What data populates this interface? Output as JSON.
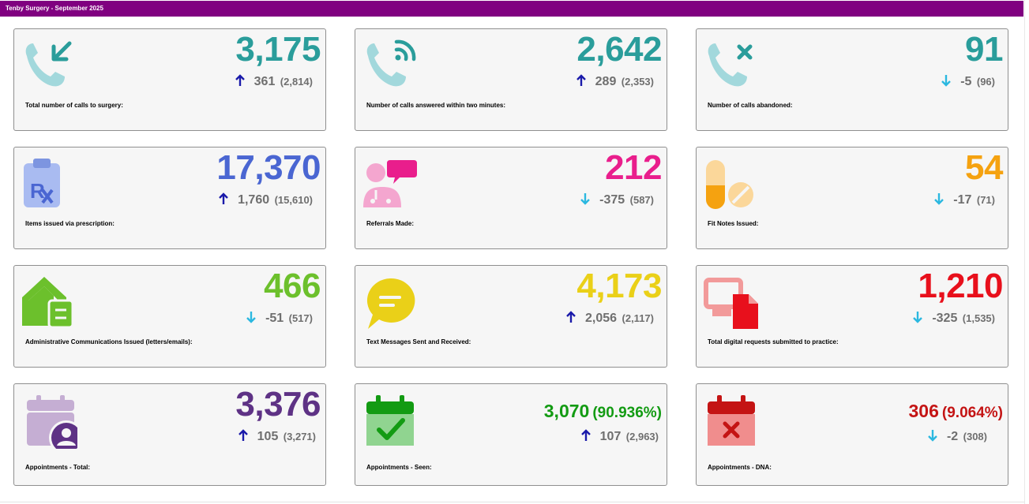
{
  "header": {
    "title": "Tenby Surgery - September 2025"
  },
  "cards": [
    {
      "label": "Total number of calls to surgery:",
      "value": "3,175",
      "percent": "",
      "change": "361",
      "previous": "(2,814)",
      "trend": "up",
      "color": "#2a9d9b",
      "icon": "incoming-call-icon"
    },
    {
      "label": "Number of calls answered within two minutes:",
      "value": "2,642",
      "percent": "",
      "change": "289",
      "previous": "(2,353)",
      "trend": "up",
      "color": "#2a9d9b",
      "icon": "phone-wireless-icon"
    },
    {
      "label": "Number of calls abandoned:",
      "value": "91",
      "percent": "",
      "change": "-5",
      "previous": "(96)",
      "trend": "down",
      "color": "#2a9d9b",
      "icon": "missed-call-icon"
    },
    {
      "label": "Items issued via prescription:",
      "value": "17,370",
      "percent": "",
      "change": "1,760",
      "previous": "(15,610)",
      "trend": "up",
      "color": "#4a66d2",
      "icon": "prescription-clipboard-icon"
    },
    {
      "label": "Referrals Made:",
      "value": "212",
      "percent": "",
      "change": "-375",
      "previous": "(587)",
      "trend": "down",
      "color": "#e91e8c",
      "icon": "doctor-speech-icon"
    },
    {
      "label": "Fit Notes Issued:",
      "value": "54",
      "percent": "",
      "change": "-17",
      "previous": "(71)",
      "trend": "down",
      "color": "#f5a210",
      "icon": "pills-icon"
    },
    {
      "label": "Administrative Communications Issued (letters/emails):",
      "value": "466",
      "percent": "",
      "change": "-51",
      "previous": "(517)",
      "trend": "down",
      "color": "#6cc02c",
      "icon": "house-document-icon"
    },
    {
      "label": "Text Messages Sent and Received:",
      "value": "4,173",
      "percent": "",
      "change": "2,056",
      "previous": "(2,117)",
      "trend": "up",
      "color": "#ead018",
      "icon": "chat-bubble-icon"
    },
    {
      "label": "Total digital requests submitted to practice:",
      "value": "1,210",
      "percent": "",
      "change": "-325",
      "previous": "(1,535)",
      "trend": "down",
      "color": "#e8101c",
      "icon": "digital-document-icon"
    },
    {
      "label": "Appointments - Total:",
      "value": "3,376",
      "percent": "",
      "change": "105",
      "previous": "(3,271)",
      "trend": "up",
      "color": "#5e3285",
      "icon": "calendar-user-icon"
    },
    {
      "label": "Appointments - Seen:",
      "value": "3,070",
      "percent": "(90.936%)",
      "change": "107",
      "previous": "(2,963)",
      "trend": "up",
      "color": "#139b13",
      "icon": "calendar-check-icon"
    },
    {
      "label": "Appointments - DNA:",
      "value": "306",
      "percent": "(9.064%)",
      "change": "-2",
      "previous": "(308)",
      "trend": "down",
      "color": "#c41414",
      "icon": "calendar-cross-icon"
    }
  ],
  "trend_colors": {
    "up": "#1a1aaa",
    "down": "#2bb8e0"
  }
}
